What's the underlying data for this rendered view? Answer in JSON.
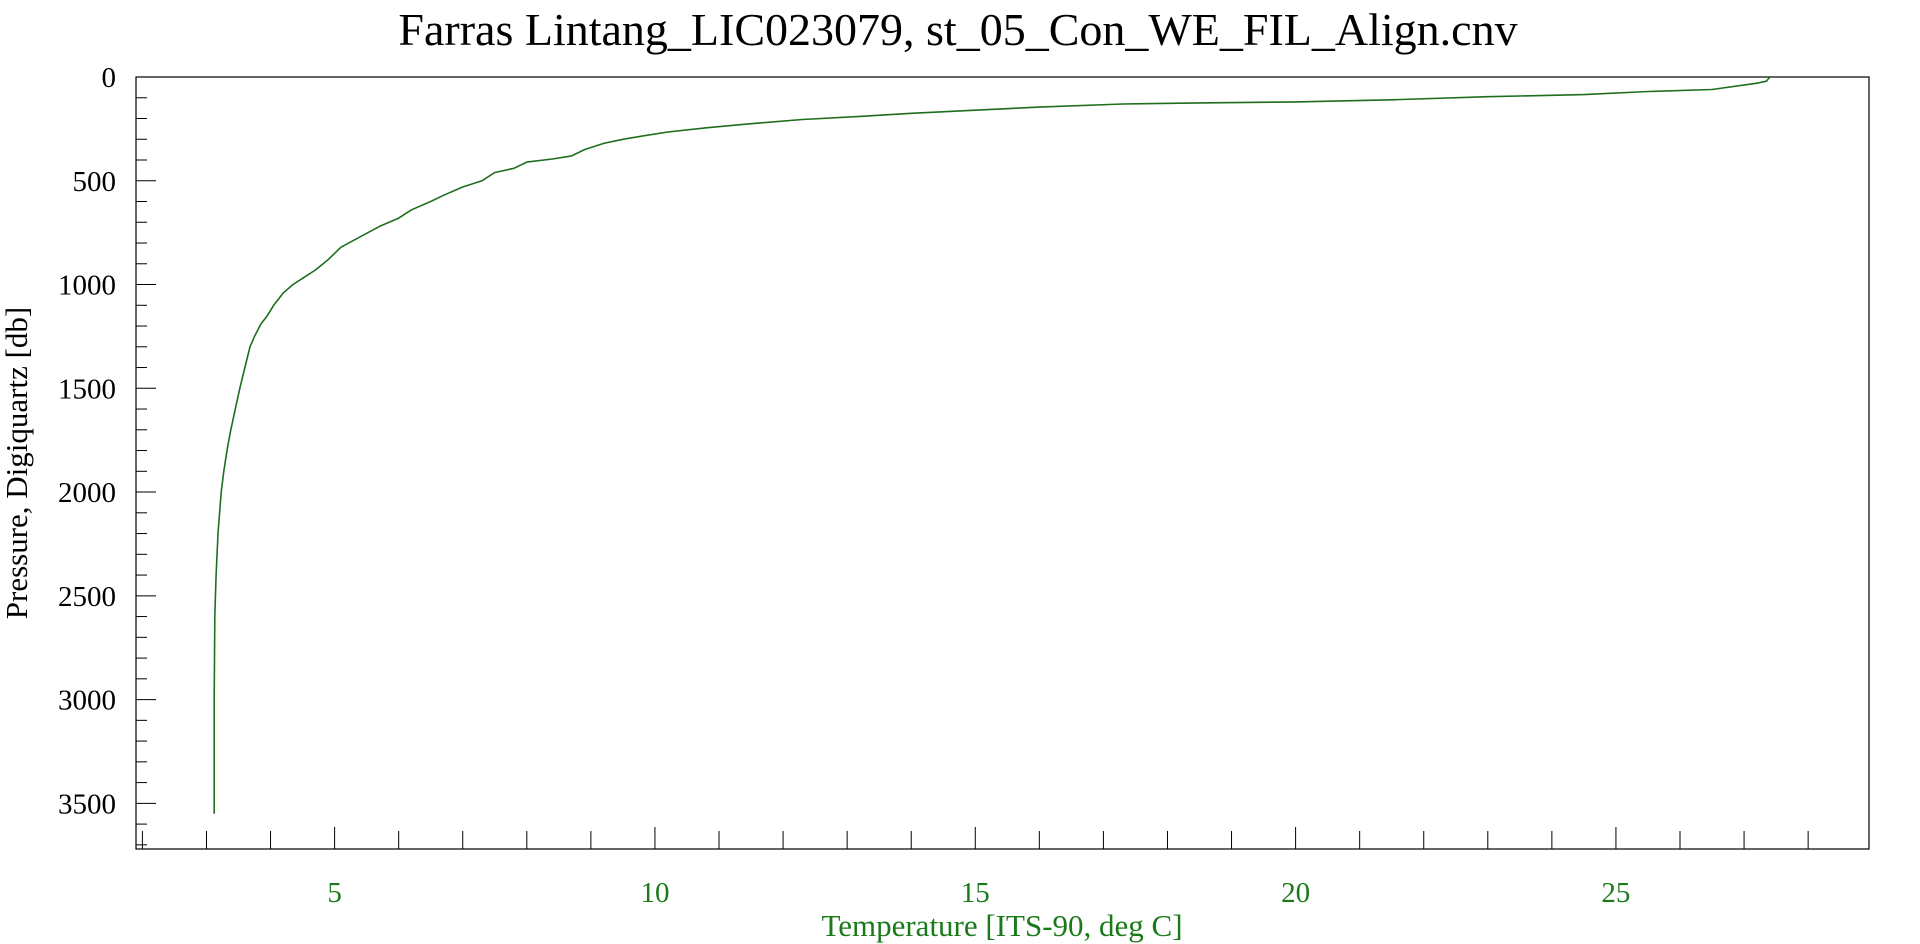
{
  "chart_data": {
    "type": "line",
    "title": "Farras Lintang_LIC023079, st_05_Con_WE_FIL_Align.cnv",
    "xlabel": "Temperature [ITS-90, deg C]",
    "ylabel": "Pressure, Digiquartz [db]",
    "xlim": [
      1.9,
      28.95
    ],
    "ylim": [
      3720,
      0
    ],
    "y_inverted": true,
    "x_ticks": [
      5,
      10,
      15,
      20,
      25
    ],
    "y_ticks": [
      0,
      500,
      1000,
      1500,
      2000,
      2500,
      3000,
      3500
    ],
    "grid": false,
    "colors": {
      "series": "#1e6e1e",
      "x_axis_text": "#1a7a1a",
      "axis": "#000000"
    },
    "series": [
      {
        "x": [
          27.4,
          27.35,
          27.2,
          26.5,
          25.5,
          24.5,
          23.0,
          21.5,
          20.0,
          18.5,
          17.3,
          16.0,
          15.0,
          14.0,
          13.2,
          12.3,
          11.5,
          10.8,
          10.2,
          9.8,
          9.5,
          9.2,
          8.9,
          8.7,
          8.4,
          8.0,
          7.8,
          7.5,
          7.3,
          7.0,
          6.7,
          6.5,
          6.2,
          6.0,
          5.7,
          5.4,
          5.1,
          4.9,
          4.7,
          4.5,
          4.35,
          4.2,
          4.05,
          3.95,
          3.85,
          3.75,
          3.68,
          3.6,
          3.52,
          3.45,
          3.38,
          3.32,
          3.27,
          3.23,
          3.18,
          3.15,
          3.13,
          3.12,
          3.12
        ],
        "y": [
          0,
          20,
          30,
          60,
          70,
          85,
          95,
          110,
          120,
          125,
          130,
          145,
          160,
          175,
          190,
          205,
          225,
          245,
          265,
          285,
          300,
          320,
          350,
          380,
          395,
          410,
          440,
          460,
          500,
          530,
          570,
          600,
          640,
          680,
          720,
          770,
          820,
          880,
          930,
          970,
          1000,
          1040,
          1100,
          1150,
          1190,
          1250,
          1300,
          1400,
          1500,
          1600,
          1700,
          1800,
          1900,
          2000,
          2200,
          2400,
          2600,
          3000,
          3550
        ]
      }
    ]
  }
}
